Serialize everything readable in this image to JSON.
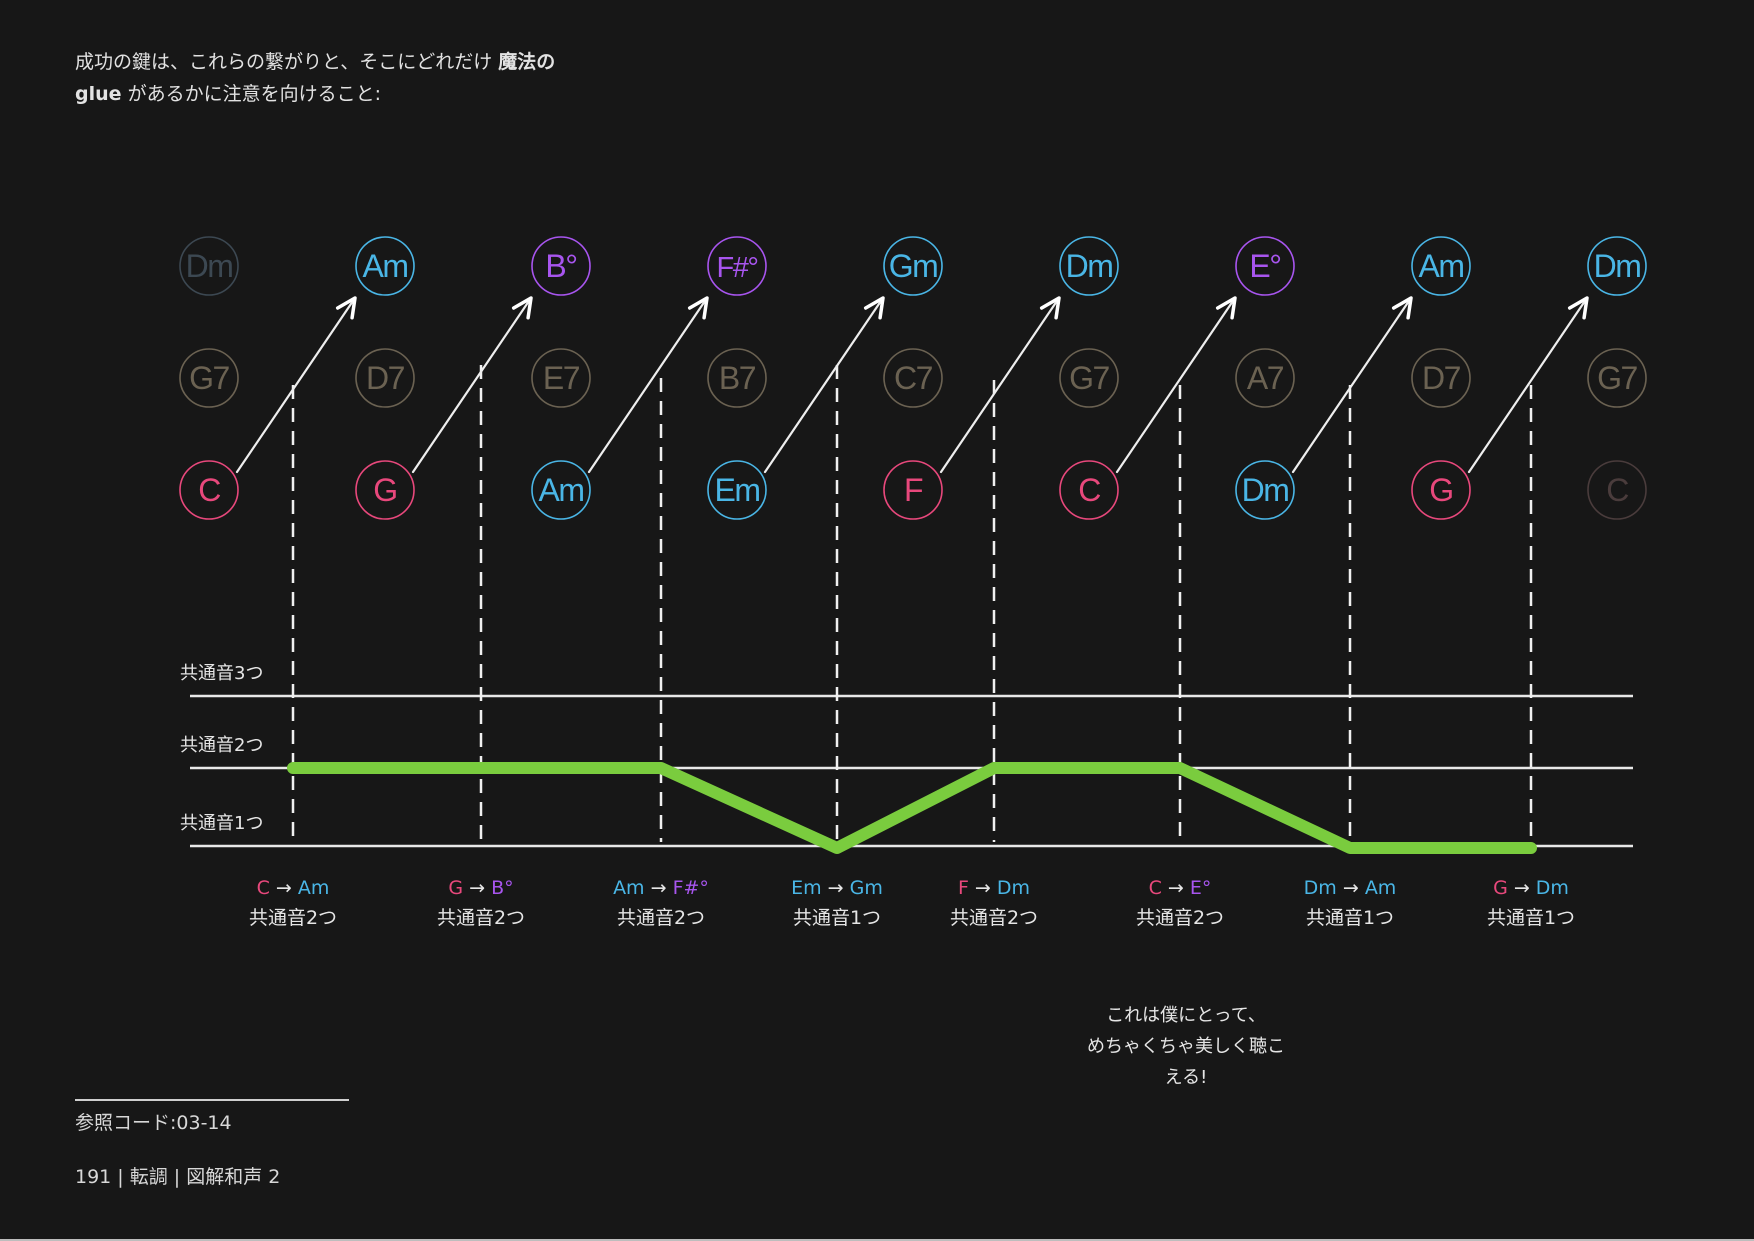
{
  "intro": {
    "line1_a": "成功の鍵は、これらの繋がりと、そこにどれだけ ",
    "line1_b": "魔法の",
    "line2_a": "glue",
    "line2_b": " があるかに注意を向けること:"
  },
  "colors": {
    "background": "#171717",
    "major": "#e8487c",
    "minor": "#4ab6e6",
    "diminished": "#a855ef",
    "dominant_faded": "#6b6252",
    "minor_faded": "#3c4852",
    "major_faded": "#4a3c3c",
    "glue_line": "#7acc3e",
    "guide": "#e8e8e8"
  },
  "columns": [
    {
      "top": "Dm",
      "top_type": "minor_faded",
      "mid": "G7",
      "bottom": "C",
      "bottom_type": "major"
    },
    {
      "top": "Am",
      "top_type": "minor",
      "mid": "D7",
      "bottom": "G",
      "bottom_type": "major"
    },
    {
      "top": "B°",
      "top_type": "diminished",
      "mid": "E7",
      "bottom": "Am",
      "bottom_type": "minor"
    },
    {
      "top": "F#°",
      "top_type": "diminished",
      "mid": "B7",
      "bottom": "Em",
      "bottom_type": "minor"
    },
    {
      "top": "Gm",
      "top_type": "minor",
      "mid": "C7",
      "bottom": "F",
      "bottom_type": "major"
    },
    {
      "top": "Dm",
      "top_type": "minor",
      "mid": "G7",
      "bottom": "C",
      "bottom_type": "major"
    },
    {
      "top": "E°",
      "top_type": "diminished",
      "mid": "A7",
      "bottom": "Dm",
      "bottom_type": "minor"
    },
    {
      "top": "Am",
      "top_type": "minor",
      "mid": "D7",
      "bottom": "G",
      "bottom_type": "major"
    },
    {
      "top": "Dm",
      "top_type": "minor",
      "mid": "G7",
      "bottom": "C",
      "bottom_type": "major_faded"
    }
  ],
  "levels": [
    "共通音1つ",
    "共通音2つ",
    "共通音3つ"
  ],
  "arrow_symbol": "→",
  "transitions": [
    {
      "from": "C",
      "from_type": "major",
      "to": "Am",
      "to_type": "minor",
      "common": "共通音2つ",
      "value": 2
    },
    {
      "from": "G",
      "from_type": "major",
      "to": "B°",
      "to_type": "diminished",
      "common": "共通音2つ",
      "value": 2
    },
    {
      "from": "Am",
      "from_type": "minor",
      "to": "F#°",
      "to_type": "diminished",
      "common": "共通音2つ",
      "value": 2
    },
    {
      "from": "Em",
      "from_type": "minor",
      "to": "Gm",
      "to_type": "minor",
      "common": "共通音1つ",
      "value": 1
    },
    {
      "from": "F",
      "from_type": "major",
      "to": "Dm",
      "to_type": "minor",
      "common": "共通音2つ",
      "value": 2
    },
    {
      "from": "C",
      "from_type": "major",
      "to": "E°",
      "to_type": "diminished",
      "common": "共通音2つ",
      "value": 2
    },
    {
      "from": "Dm",
      "from_type": "minor",
      "to": "Am",
      "to_type": "minor",
      "common": "共通音1つ",
      "value": 1
    },
    {
      "from": "G",
      "from_type": "major",
      "to": "Dm",
      "to_type": "minor",
      "common": "共通音1つ",
      "value": 1
    }
  ],
  "note": [
    "これは僕にとって、",
    "めちゃくちゃ美しく聴こ",
    "える!"
  ],
  "footer": {
    "reference": "参照コード:03-14",
    "page_info": "191 | 転調 | 図解和声 2"
  }
}
